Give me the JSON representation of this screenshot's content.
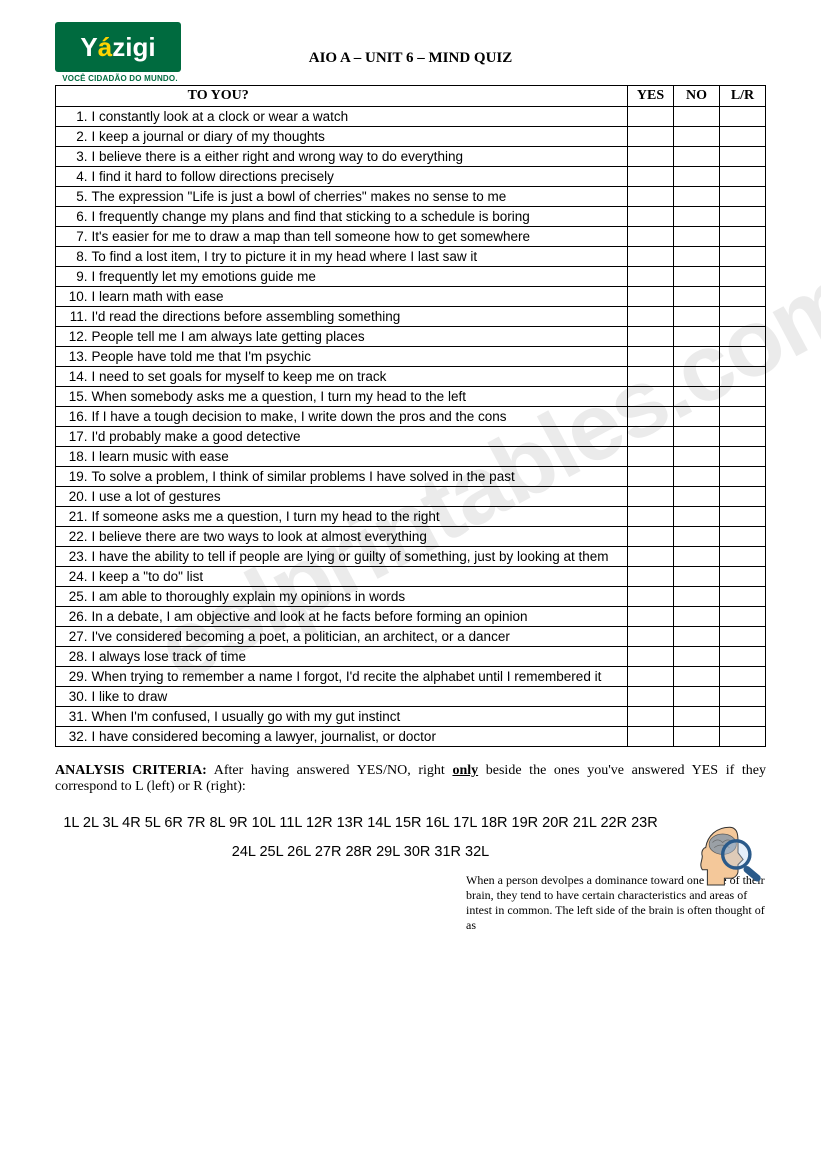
{
  "logo": {
    "name_pre": "Y",
    "name_accent": "á",
    "name_post": "zigi",
    "tagline": "VOCÊ CIDADÃO DO MUNDO.",
    "bg_color": "#006b3f",
    "text_color": "#ffffff",
    "accent_color": "#ffd400"
  },
  "title": "AIO A – UNIT 6 – MIND QUIZ",
  "watermark": "eslprintables.com",
  "table": {
    "header_question_suffix": "TO YOU?",
    "col_yes": "YES",
    "col_no": "NO",
    "col_lr": "L/R",
    "rows": [
      {
        "n": "1.",
        "t": "I constantly look at a clock or wear a watch"
      },
      {
        "n": "2.",
        "t": "I keep a journal or diary of my thoughts"
      },
      {
        "n": "3.",
        "t": "I believe there is a either right and wrong way to do everything"
      },
      {
        "n": "4.",
        "t": "I find it hard to follow directions precisely"
      },
      {
        "n": "5.",
        "t": "The expression \"Life is just a bowl of cherries\" makes no sense to me"
      },
      {
        "n": "6.",
        "t": "I frequently change my plans and find that sticking to a schedule is boring"
      },
      {
        "n": "7.",
        "t": "It's easier for me to draw a map than tell someone how to get somewhere"
      },
      {
        "n": "8.",
        "t": "To find a lost item, I try to picture it in my head where I last saw it"
      },
      {
        "n": "9.",
        "t": "I frequently let my emotions guide me"
      },
      {
        "n": "10.",
        "t": "I learn math with ease"
      },
      {
        "n": "11.",
        "t": "I'd read the directions before assembling something"
      },
      {
        "n": "12.",
        "t": "People tell me I am always late getting places"
      },
      {
        "n": "13.",
        "t": "People have told me that I'm psychic"
      },
      {
        "n": "14.",
        "t": "I need to set goals for myself to keep me on track"
      },
      {
        "n": "15.",
        "t": "When somebody asks me a question, I turn my head to the left"
      },
      {
        "n": "16.",
        "t": "If I have a tough decision to make, I write down the pros and the cons"
      },
      {
        "n": "17.",
        "t": "I'd probably make a good detective"
      },
      {
        "n": "18.",
        "t": "I learn music with ease"
      },
      {
        "n": "19.",
        "t": "To solve a problem, I think of similar problems I have solved in the past"
      },
      {
        "n": "20.",
        "t": "I use a lot of gestures"
      },
      {
        "n": "21.",
        "t": "If someone asks me a question, I turn my head to the right"
      },
      {
        "n": "22.",
        "t": "I believe there are two ways to look at almost everything"
      },
      {
        "n": "23.",
        "t": "I have the ability to tell if people are lying or guilty of something, just by looking at them"
      },
      {
        "n": "24.",
        "t": "I keep a \"to do\" list"
      },
      {
        "n": "25.",
        "t": "I am able to thoroughly explain my opinions in words"
      },
      {
        "n": "26.",
        "t": "In a debate, I am objective and look at he facts before forming an opinion"
      },
      {
        "n": "27.",
        "t": "I've considered becoming a poet, a politician, an architect, or a dancer"
      },
      {
        "n": "28.",
        "t": "I always lose track of time"
      },
      {
        "n": "29.",
        "t": "When trying to remember a name I forgot, I'd recite the alphabet until I remembered it"
      },
      {
        "n": "30.",
        "t": "I like to draw"
      },
      {
        "n": "31.",
        "t": "When I'm confused, I usually go with my gut instinct"
      },
      {
        "n": "32.",
        "t": "I have considered becoming a lawyer, journalist, or doctor"
      }
    ]
  },
  "analysis": {
    "label": "ANALYSIS CRITERIA:",
    "text_before_only": " After having answered YES/NO, right ",
    "only": "only",
    "text_after_only": " beside the ones you've answered YES if they correspond to L (left) or R (right):"
  },
  "key_line": "1L  2L  3L  4R  5L  6R  7R  8L  9R  10L  11L  12R  13R  14L  15R  16L  17L 18R  19R  20R  21L  22R  23R  24L  25L  26L  27R  28R  29L  30R  31R  32L",
  "footnote": "When a person devolpes a dominance toward one side of their brain, they tend to have certain characteristics and areas of intest in common. The left side of the brain is often thought of as"
}
